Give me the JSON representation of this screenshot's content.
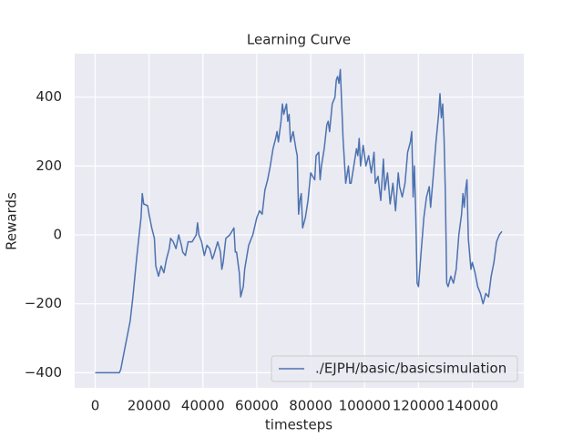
{
  "chart_data": {
    "type": "line",
    "title": "Learning Curve",
    "x_label": "timesteps",
    "y_label": "Rewards",
    "x": [
      0,
      3000,
      9000,
      9500,
      11000,
      13000,
      14000,
      15500,
      17000,
      17500,
      18000,
      19500,
      20000,
      21000,
      22000,
      22500,
      23500,
      24500,
      25500,
      26500,
      27500,
      28000,
      29000,
      30000,
      31000,
      32000,
      32500,
      33500,
      34500,
      36000,
      37500,
      38000,
      38500,
      39500,
      40500,
      41500,
      42500,
      43500,
      44000,
      45500,
      46500,
      47000,
      47500,
      48500,
      50000,
      51500,
      52000,
      52500,
      53500,
      54000,
      55000,
      55500,
      57000,
      58500,
      60000,
      61000,
      62000,
      63000,
      64000,
      65000,
      66000,
      67000,
      67500,
      68000,
      69000,
      69500,
      70000,
      71000,
      71500,
      72000,
      72500,
      73500,
      74500,
      75000,
      75500,
      76000,
      76500,
      77000,
      78000,
      79000,
      80000,
      81500,
      82000,
      83000,
      83500,
      84000,
      85000,
      86000,
      86500,
      87000,
      88000,
      89000,
      89500,
      90000,
      90500,
      91000,
      91500,
      92000,
      93000,
      94000,
      94500,
      95000,
      96000,
      97000,
      97500,
      98000,
      98500,
      99500,
      100500,
      101500,
      102500,
      103500,
      104000,
      105000,
      106000,
      107000,
      107500,
      108500,
      109500,
      110500,
      111500,
      112500,
      113000,
      114000,
      115000,
      116000,
      117000,
      117500,
      118000,
      118500,
      119000,
      119500,
      120000,
      121000,
      122000,
      123000,
      124000,
      124500,
      125500,
      126500,
      127500,
      128000,
      128500,
      129000,
      129500,
      130000,
      130500,
      131000,
      132000,
      133000,
      134000,
      135000,
      136000,
      136500,
      137000,
      137500,
      138000,
      138500,
      139500,
      140000,
      141000,
      142000,
      143000,
      144000,
      145000,
      146000,
      147000,
      148000,
      149000,
      150000,
      151000
    ],
    "series": [
      {
        "name": "./EJPH/basic/basicsimulation",
        "color": "#4c72b0",
        "values": [
          -400,
          -400,
          -400,
          -390,
          -330,
          -250,
          -180,
          -60,
          50,
          120,
          90,
          85,
          60,
          20,
          -10,
          -90,
          -120,
          -90,
          -110,
          -70,
          -40,
          -10,
          -20,
          -40,
          0,
          -30,
          -50,
          -60,
          -20,
          -20,
          0,
          35,
          0,
          -20,
          -60,
          -30,
          -40,
          -70,
          -60,
          -20,
          -50,
          -100,
          -80,
          -10,
          0,
          20,
          -50,
          -50,
          -110,
          -180,
          -150,
          -100,
          -30,
          0,
          50,
          70,
          60,
          130,
          160,
          200,
          250,
          280,
          300,
          270,
          330,
          380,
          350,
          380,
          330,
          350,
          270,
          300,
          250,
          230,
          60,
          100,
          120,
          20,
          50,
          100,
          180,
          160,
          230,
          240,
          160,
          200,
          250,
          320,
          330,
          300,
          380,
          400,
          450,
          460,
          440,
          480,
          380,
          280,
          150,
          200,
          150,
          150,
          200,
          250,
          230,
          280,
          200,
          260,
          200,
          230,
          180,
          240,
          150,
          170,
          100,
          220,
          130,
          180,
          90,
          150,
          70,
          180,
          140,
          110,
          150,
          240,
          270,
          300,
          110,
          200,
          60,
          -140,
          -150,
          -50,
          50,
          110,
          140,
          80,
          170,
          270,
          350,
          410,
          340,
          380,
          280,
          120,
          -140,
          -150,
          -120,
          -140,
          -100,
          0,
          60,
          120,
          80,
          130,
          160,
          -10,
          -100,
          -80,
          -110,
          -150,
          -170,
          -200,
          -170,
          -180,
          -120,
          -80,
          -20,
          0,
          10
        ]
      }
    ],
    "xlim": [
      -7600,
      159100
    ],
    "ylim": [
      -444,
      526
    ],
    "xticks": [
      0,
      20000,
      40000,
      60000,
      80000,
      100000,
      120000,
      140000
    ],
    "yticks": [
      {
        "value": -400,
        "label": "−400"
      },
      {
        "value": -200,
        "label": "−200"
      },
      0,
      200,
      400
    ],
    "grid": true,
    "legend": "lower right",
    "background": "#eaeaf2"
  }
}
